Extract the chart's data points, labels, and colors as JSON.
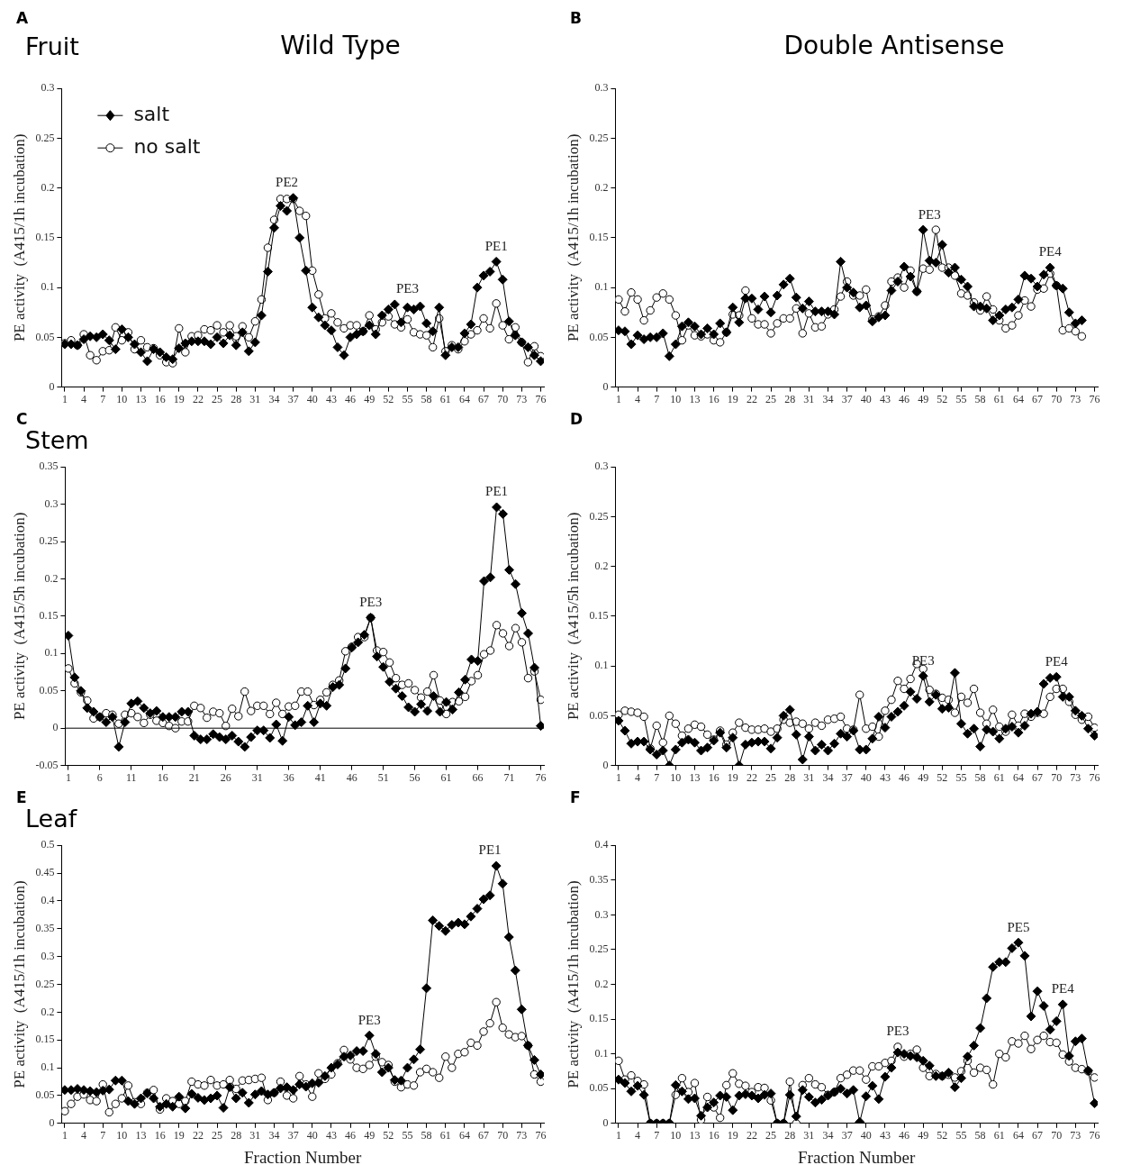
{
  "chart_data": [
    {
      "type": "line",
      "title": "Wild Type",
      "subtitle": "Fruit",
      "ylabel": "PE activity  (A415/1h incubation)",
      "legend": "top left",
      "grid": false,
      "x": [
        1,
        2,
        3,
        4,
        5,
        6,
        7,
        8,
        9,
        10,
        11,
        12,
        13,
        14,
        15,
        16,
        17,
        18,
        19,
        20,
        21,
        22,
        23,
        24,
        25,
        26,
        27,
        28,
        29,
        30,
        31,
        32,
        33,
        34,
        35,
        36,
        37,
        38,
        39,
        40,
        41,
        42,
        43,
        44,
        45,
        46,
        47,
        48,
        49,
        50,
        51,
        52,
        53,
        54,
        55,
        56,
        57,
        58,
        59,
        60,
        61,
        62,
        63,
        64,
        65,
        66,
        67,
        68,
        69,
        70,
        71,
        72,
        73,
        74,
        75,
        76
      ],
      "xlim": [
        0.5,
        76.5
      ],
      "xticks": [
        1,
        4,
        7,
        10,
        13,
        16,
        19,
        22,
        25,
        28,
        31,
        34,
        37,
        40,
        43,
        46,
        49,
        52,
        55,
        58,
        61,
        64,
        67,
        70,
        73,
        76
      ],
      "ylim": [
        0,
        0.3
      ],
      "yticks": [
        0,
        0.05,
        0.1,
        0.15,
        0.2,
        0.25,
        0.3
      ],
      "series": [
        {
          "name": "salt",
          "color": "#000000",
          "marker": "diamond",
          "values": [
            0.043,
            0.043,
            0.042,
            0.048,
            0.051,
            0.05,
            0.053,
            0.047,
            0.038,
            0.058,
            0.05,
            0.043,
            0.035,
            0.026,
            0.038,
            0.035,
            0.03,
            0.028,
            0.039,
            0.044,
            0.046,
            0.046,
            0.046,
            0.043,
            0.05,
            0.044,
            0.052,
            0.042,
            0.055,
            0.036,
            0.045,
            0.072,
            0.116,
            0.16,
            0.182,
            0.177,
            0.19,
            0.15,
            0.117,
            0.08,
            0.07,
            0.062,
            0.057,
            0.04,
            0.032,
            0.05,
            0.053,
            0.056,
            0.062,
            0.053,
            0.072,
            0.078,
            0.083,
            0.065,
            0.08,
            0.078,
            0.081,
            0.064,
            0.056,
            0.08,
            0.032,
            0.04,
            0.04,
            0.054,
            0.063,
            0.1,
            0.112,
            0.116,
            0.126,
            0.108,
            0.066,
            0.052,
            0.045,
            0.04,
            0.032,
            0.026
          ]
        },
        {
          "name": "no salt",
          "color": "#000000",
          "marker": "circle",
          "values": [
            0.044,
            0.047,
            0.042,
            0.053,
            0.032,
            0.027,
            0.036,
            0.037,
            0.06,
            0.047,
            0.055,
            0.038,
            0.047,
            0.04,
            0.039,
            0.032,
            0.025,
            0.024,
            0.059,
            0.035,
            0.051,
            0.052,
            0.058,
            0.057,
            0.062,
            0.055,
            0.062,
            0.051,
            0.061,
            0.05,
            0.066,
            0.088,
            0.14,
            0.168,
            0.189,
            0.189,
            0.189,
            0.177,
            0.172,
            0.117,
            0.093,
            0.069,
            0.074,
            0.065,
            0.059,
            0.062,
            0.062,
            0.056,
            0.072,
            0.058,
            0.065,
            0.071,
            0.063,
            0.06,
            0.068,
            0.055,
            0.053,
            0.052,
            0.04,
            0.069,
            0.036,
            0.042,
            0.038,
            0.046,
            0.053,
            0.057,
            0.069,
            0.059,
            0.084,
            0.062,
            0.048,
            0.06,
            0.045,
            0.025,
            0.041,
            0.031
          ]
        }
      ],
      "annotations": [
        "A",
        {
          "text": "PE2",
          "x": 36,
          "y": 0.19
        },
        {
          "text": "PE3",
          "x": 55,
          "y": 0.083
        },
        {
          "text": "PE1",
          "x": 69,
          "y": 0.126
        }
      ]
    },
    {
      "type": "line",
      "title": "Double Antisense",
      "ylabel": "PE activity  (A415/1h incubation)",
      "grid": false,
      "x": [
        1,
        2,
        3,
        4,
        5,
        6,
        7,
        8,
        9,
        10,
        11,
        12,
        13,
        14,
        15,
        16,
        17,
        18,
        19,
        20,
        21,
        22,
        23,
        24,
        25,
        26,
        27,
        28,
        29,
        30,
        31,
        32,
        33,
        34,
        35,
        36,
        37,
        38,
        39,
        40,
        41,
        42,
        43,
        44,
        45,
        46,
        47,
        48,
        49,
        50,
        51,
        52,
        53,
        54,
        55,
        56,
        57,
        58,
        59,
        60,
        61,
        62,
        63,
        64,
        65,
        66,
        67,
        68,
        69,
        70,
        71,
        72,
        73,
        74
      ],
      "xlim": [
        0.5,
        76.5
      ],
      "xticks": [
        1,
        4,
        7,
        10,
        13,
        16,
        19,
        22,
        25,
        28,
        31,
        34,
        37,
        40,
        43,
        46,
        49,
        52,
        55,
        58,
        61,
        64,
        67,
        70,
        73,
        76
      ],
      "ylim": [
        0,
        0.3
      ],
      "yticks": [
        0,
        0.05,
        0.1,
        0.15,
        0.2,
        0.25,
        0.3
      ],
      "series": [
        {
          "color": "#000000",
          "marker": "diamond",
          "values": [
            0.057,
            0.056,
            0.043,
            0.052,
            0.048,
            0.05,
            0.05,
            0.054,
            0.031,
            0.043,
            0.061,
            0.065,
            0.061,
            0.053,
            0.059,
            0.053,
            0.064,
            0.055,
            0.08,
            0.065,
            0.089,
            0.089,
            0.078,
            0.091,
            0.075,
            0.092,
            0.103,
            0.109,
            0.09,
            0.079,
            0.086,
            0.076,
            0.076,
            0.076,
            0.073,
            0.126,
            0.1,
            0.095,
            0.08,
            0.082,
            0.066,
            0.07,
            0.072,
            0.097,
            0.106,
            0.121,
            0.111,
            0.096,
            0.158,
            0.127,
            0.125,
            0.143,
            0.115,
            0.12,
            0.108,
            0.101,
            0.081,
            0.081,
            0.079,
            0.067,
            0.072,
            0.078,
            0.08,
            0.088,
            0.112,
            0.109,
            0.101,
            0.113,
            0.12,
            0.102,
            0.099,
            0.075,
            0.064,
            0.067
          ]
        },
        {
          "color": "#000000",
          "marker": "circle",
          "values": [
            0.088,
            0.076,
            0.095,
            0.088,
            0.067,
            0.077,
            0.09,
            0.094,
            0.088,
            0.072,
            0.047,
            0.062,
            0.052,
            0.051,
            0.053,
            0.047,
            0.045,
            0.055,
            0.073,
            0.072,
            0.097,
            0.069,
            0.063,
            0.063,
            0.054,
            0.064,
            0.069,
            0.069,
            0.079,
            0.054,
            0.074,
            0.06,
            0.061,
            0.073,
            0.078,
            0.091,
            0.106,
            0.092,
            0.092,
            0.098,
            0.068,
            0.071,
            0.082,
            0.106,
            0.11,
            0.1,
            0.117,
            0.096,
            0.119,
            0.118,
            0.158,
            0.12,
            0.12,
            0.112,
            0.094,
            0.092,
            0.085,
            0.077,
            0.091,
            0.078,
            0.067,
            0.059,
            0.062,
            0.072,
            0.087,
            0.081,
            0.098,
            0.099,
            0.114,
            0.102,
            0.057,
            0.059,
            0.056,
            0.051
          ]
        }
      ],
      "annotations": [
        "B",
        {
          "text": "PE3",
          "x": 50,
          "y": 0.158
        },
        {
          "text": "PE4",
          "x": 69,
          "y": 0.12
        }
      ]
    },
    {
      "type": "line",
      "subtitle": "Stem",
      "ylabel": "PE activity  (A415/5h incubation)",
      "grid": false,
      "x": [
        1,
        2,
        3,
        4,
        5,
        6,
        7,
        8,
        9,
        10,
        11,
        12,
        13,
        14,
        15,
        16,
        17,
        18,
        19,
        20,
        21,
        22,
        23,
        24,
        25,
        26,
        27,
        28,
        29,
        30,
        31,
        32,
        33,
        34,
        35,
        36,
        37,
        38,
        39,
        40,
        41,
        42,
        43,
        44,
        45,
        46,
        47,
        48,
        49,
        50,
        51,
        52,
        53,
        54,
        55,
        56,
        57,
        58,
        59,
        60,
        61,
        62,
        63,
        64,
        65,
        66,
        67,
        68,
        69,
        70,
        71,
        72,
        73,
        74,
        75,
        76
      ],
      "xlim": [
        0.5,
        76.5
      ],
      "xticks": [
        1,
        6,
        11,
        16,
        21,
        26,
        31,
        36,
        41,
        46,
        51,
        56,
        61,
        66,
        71,
        76
      ],
      "ylim": [
        -0.05,
        0.35
      ],
      "yticks": [
        -0.05,
        0,
        0.05,
        0.1,
        0.15,
        0.2,
        0.25,
        0.3,
        0.35
      ],
      "ref_lines": [
        {
          "axis": "y",
          "value": 0,
          "color": "#000000"
        }
      ],
      "series": [
        {
          "color": "#000000",
          "marker": "diamond",
          "values": [
            0.124,
            0.068,
            0.05,
            0.027,
            0.022,
            0.015,
            0.008,
            0.015,
            -0.025,
            0.008,
            0.033,
            0.036,
            0.027,
            0.02,
            0.023,
            0.015,
            0.015,
            0.015,
            0.022,
            0.022,
            -0.01,
            -0.015,
            -0.015,
            -0.008,
            -0.012,
            -0.015,
            -0.01,
            -0.018,
            -0.025,
            -0.012,
            -0.003,
            -0.003,
            -0.013,
            0.005,
            -0.017,
            0.015,
            0.004,
            0.008,
            0.03,
            0.008,
            0.033,
            0.03,
            0.055,
            0.058,
            0.08,
            0.108,
            0.115,
            0.125,
            0.148,
            0.096,
            0.082,
            0.062,
            0.053,
            0.043,
            0.028,
            0.022,
            0.032,
            0.023,
            0.043,
            0.022,
            0.035,
            0.025,
            0.048,
            0.065,
            0.092,
            0.09,
            0.197,
            0.202,
            0.296,
            0.287,
            0.212,
            0.193,
            0.154,
            0.127,
            0.081,
            0.003
          ]
        },
        {
          "color": "#000000",
          "marker": "circle",
          "values": [
            0.08,
            0.06,
            0.048,
            0.037,
            0.013,
            0.015,
            0.02,
            0.018,
            0.006,
            0.018,
            0.02,
            0.015,
            0.007,
            0.018,
            0.01,
            0.007,
            0.003,
            0,
            0.009,
            0.009,
            0.03,
            0.027,
            0.014,
            0.022,
            0.02,
            0.003,
            0.026,
            0.016,
            0.049,
            0.023,
            0.03,
            0.03,
            0.019,
            0.034,
            0.019,
            0.029,
            0.03,
            0.049,
            0.049,
            0.031,
            0.038,
            0.048,
            0.058,
            0.064,
            0.103,
            0.109,
            0.122,
            0.122,
            0.148,
            0.104,
            0.102,
            0.088,
            0.067,
            0.058,
            0.06,
            0.051,
            0.041,
            0.049,
            0.071,
            0.037,
            0.019,
            0.035,
            0.036,
            0.042,
            0.063,
            0.071,
            0.099,
            0.104,
            0.138,
            0.127,
            0.11,
            0.134,
            0.115,
            0.067,
            0.076,
            0.038
          ]
        }
      ],
      "annotations": [
        "C",
        {
          "text": "PE3",
          "x": 49,
          "y": 0.148
        },
        {
          "text": "PE1",
          "x": 69,
          "y": 0.296
        }
      ]
    },
    {
      "type": "line",
      "ylabel": "PE activity  (A415/5h incubation)",
      "grid": false,
      "x": [
        1,
        2,
        3,
        4,
        5,
        6,
        7,
        8,
        9,
        10,
        11,
        12,
        13,
        14,
        15,
        16,
        17,
        18,
        19,
        20,
        21,
        22,
        23,
        24,
        25,
        26,
        27,
        28,
        29,
        30,
        31,
        32,
        33,
        34,
        35,
        36,
        37,
        38,
        39,
        40,
        41,
        42,
        43,
        44,
        45,
        46,
        47,
        48,
        49,
        50,
        51,
        52,
        53,
        54,
        55,
        56,
        57,
        58,
        59,
        60,
        61,
        62,
        63,
        64,
        65,
        66,
        67,
        68,
        69,
        70,
        71,
        72,
        73,
        74,
        75,
        76
      ],
      "xlim": [
        0.5,
        76.5
      ],
      "xticks": [
        1,
        4,
        7,
        10,
        13,
        16,
        19,
        22,
        25,
        28,
        31,
        34,
        37,
        40,
        43,
        46,
        49,
        52,
        55,
        58,
        61,
        64,
        67,
        70,
        73,
        76
      ],
      "ylim": [
        0,
        0.3
      ],
      "yticks": [
        0,
        0.05,
        0.1,
        0.15,
        0.2,
        0.25,
        0.3
      ],
      "series": [
        {
          "color": "#000000",
          "marker": "diamond",
          "values": [
            0.045,
            0.035,
            0.022,
            0.024,
            0.024,
            0.016,
            0.011,
            0.015,
            0,
            0.016,
            0.023,
            0.026,
            0.023,
            0.015,
            0.018,
            0.025,
            0.033,
            0.018,
            0.028,
            0,
            0.021,
            0.023,
            0.024,
            0.024,
            0.017,
            0.028,
            0.05,
            0.056,
            0.031,
            0.006,
            0.029,
            0.015,
            0.021,
            0.015,
            0.022,
            0.032,
            0.029,
            0.035,
            0.016,
            0.016,
            0.027,
            0.049,
            0.038,
            0.049,
            0.054,
            0.06,
            0.074,
            0.067,
            0.09,
            0.064,
            0.071,
            0.057,
            0.058,
            0.093,
            0.042,
            0.032,
            0.037,
            0.019,
            0.036,
            0.034,
            0.027,
            0.037,
            0.039,
            0.033,
            0.04,
            0.052,
            0.054,
            0.082,
            0.088,
            0.089,
            0.069,
            0.069,
            0.055,
            0.05,
            0.037,
            0.03
          ]
        },
        {
          "color": "#000000",
          "marker": "circle",
          "values": [
            0.051,
            0.055,
            0.054,
            0.053,
            0.049,
            0.017,
            0.04,
            0.023,
            0.05,
            0.042,
            0.03,
            0.037,
            0.041,
            0.039,
            0.031,
            0.026,
            0.035,
            0.021,
            0.033,
            0.043,
            0.038,
            0.036,
            0.036,
            0.037,
            0.034,
            0.037,
            0.046,
            0.043,
            0.044,
            0.042,
            0.037,
            0.043,
            0.04,
            0.046,
            0.047,
            0.049,
            0.037,
            0.036,
            0.071,
            0.037,
            0.039,
            0.029,
            0.055,
            0.066,
            0.085,
            0.077,
            0.087,
            0.102,
            0.097,
            0.076,
            0.072,
            0.068,
            0.066,
            0.053,
            0.069,
            0.063,
            0.077,
            0.053,
            0.042,
            0.056,
            0.039,
            0.034,
            0.051,
            0.04,
            0.052,
            0.049,
            0.053,
            0.052,
            0.069,
            0.077,
            0.077,
            0.064,
            0.051,
            0.046,
            0.049,
            0.038
          ]
        }
      ],
      "annotations": [
        "D",
        {
          "text": "PE3",
          "x": 49,
          "y": 0.09
        },
        {
          "text": "PE4",
          "x": 70,
          "y": 0.089
        }
      ]
    },
    {
      "type": "line",
      "subtitle": "Leaf",
      "xlabel": "Fraction Number",
      "ylabel": "PE activity  (A415/1h incubation)",
      "grid": false,
      "x": [
        1,
        2,
        3,
        4,
        5,
        6,
        7,
        8,
        9,
        10,
        11,
        12,
        13,
        14,
        15,
        16,
        17,
        18,
        19,
        20,
        21,
        22,
        23,
        24,
        25,
        26,
        27,
        28,
        29,
        30,
        31,
        32,
        33,
        34,
        35,
        36,
        37,
        38,
        39,
        40,
        41,
        42,
        43,
        44,
        45,
        46,
        47,
        48,
        49,
        50,
        51,
        52,
        53,
        54,
        55,
        56,
        57,
        58,
        59,
        60,
        61,
        62,
        63,
        64,
        65,
        66,
        67,
        68,
        69,
        70,
        71,
        72,
        73,
        74,
        75,
        76
      ],
      "xlim": [
        0.5,
        76.5
      ],
      "xticks": [
        1,
        4,
        7,
        10,
        13,
        16,
        19,
        22,
        25,
        28,
        31,
        34,
        37,
        40,
        43,
        46,
        49,
        52,
        55,
        58,
        61,
        64,
        67,
        70,
        73,
        76
      ],
      "ylim": [
        0,
        0.5
      ],
      "yticks": [
        0,
        0.05,
        0.1,
        0.15,
        0.2,
        0.25,
        0.3,
        0.35,
        0.4,
        0.45,
        0.5
      ],
      "series": [
        {
          "color": "#000000",
          "marker": "diamond",
          "values": [
            0.06,
            0.06,
            0.062,
            0.06,
            0.058,
            0.056,
            0.059,
            0.061,
            0.077,
            0.077,
            0.04,
            0.035,
            0.045,
            0.054,
            0.045,
            0.03,
            0.035,
            0.03,
            0.048,
            0.027,
            0.053,
            0.046,
            0.042,
            0.045,
            0.05,
            0.028,
            0.065,
            0.045,
            0.055,
            0.037,
            0.052,
            0.058,
            0.052,
            0.055,
            0.063,
            0.065,
            0.06,
            0.07,
            0.066,
            0.072,
            0.073,
            0.085,
            0.1,
            0.106,
            0.12,
            0.122,
            0.13,
            0.13,
            0.158,
            0.125,
            0.092,
            0.1,
            0.078,
            0.077,
            0.1,
            0.115,
            0.133,
            0.243,
            0.365,
            0.355,
            0.346,
            0.357,
            0.361,
            0.358,
            0.372,
            0.386,
            0.403,
            0.41,
            0.463,
            0.431,
            0.335,
            0.275,
            0.205,
            0.14,
            0.114,
            0.088
          ]
        },
        {
          "color": "#000000",
          "marker": "circle",
          "values": [
            0.022,
            0.035,
            0.048,
            0.052,
            0.042,
            0.04,
            0.07,
            0.02,
            0.035,
            0.045,
            0.068,
            0.038,
            0.035,
            0.055,
            0.06,
            0.025,
            0.045,
            0.04,
            0.035,
            0.04,
            0.075,
            0.07,
            0.068,
            0.078,
            0.068,
            0.07,
            0.078,
            0.062,
            0.077,
            0.078,
            0.08,
            0.082,
            0.042,
            0.055,
            0.075,
            0.05,
            0.045,
            0.085,
            0.07,
            0.048,
            0.09,
            0.08,
            0.088,
            0.108,
            0.132,
            0.115,
            0.1,
            0.098,
            0.105,
            0.12,
            0.11,
            0.105,
            0.075,
            0.065,
            0.07,
            0.068,
            0.092,
            0.098,
            0.092,
            0.082,
            0.12,
            0.1,
            0.125,
            0.128,
            0.145,
            0.14,
            0.165,
            0.18,
            0.218,
            0.172,
            0.16,
            0.155,
            0.157,
            0.14,
            0.088,
            0.075
          ]
        }
      ],
      "annotations": [
        "E",
        {
          "text": "PE3",
          "x": 49,
          "y": 0.158
        },
        {
          "text": "PE1",
          "x": 68,
          "y": 0.463
        }
      ]
    },
    {
      "type": "line",
      "xlabel": "Fraction Number",
      "ylabel": "PE activity  (A415/1h incubation)",
      "grid": false,
      "x": [
        1,
        2,
        3,
        4,
        5,
        6,
        7,
        8,
        9,
        10,
        11,
        12,
        13,
        14,
        15,
        16,
        17,
        18,
        19,
        20,
        21,
        22,
        23,
        24,
        25,
        26,
        27,
        28,
        29,
        30,
        31,
        32,
        33,
        34,
        35,
        36,
        37,
        38,
        39,
        40,
        41,
        42,
        43,
        44,
        45,
        46,
        47,
        48,
        49,
        50,
        51,
        52,
        53,
        54,
        55,
        56,
        57,
        58,
        59,
        60,
        61,
        62,
        63,
        64,
        65,
        66,
        67,
        68,
        69,
        70,
        71,
        72,
        73,
        74,
        75,
        76
      ],
      "xlim": [
        0.5,
        76.5
      ],
      "xticks": [
        1,
        4,
        7,
        10,
        13,
        16,
        19,
        22,
        25,
        28,
        31,
        34,
        37,
        40,
        43,
        46,
        49,
        52,
        55,
        58,
        61,
        64,
        67,
        70,
        73,
        76
      ],
      "ylim": [
        0,
        0.4
      ],
      "yticks": [
        0,
        0.05,
        0.1,
        0.15,
        0.2,
        0.25,
        0.3,
        0.35,
        0.4
      ],
      "series": [
        {
          "color": "#000000",
          "marker": "diamond",
          "values": [
            0.063,
            0.058,
            0.046,
            0.054,
            0.041,
            0,
            0,
            0,
            0,
            0.055,
            0.046,
            0.035,
            0.036,
            0.011,
            0.023,
            0.03,
            0.04,
            0.038,
            0.019,
            0.04,
            0.042,
            0.04,
            0.036,
            0.041,
            0.043,
            0,
            0,
            0.041,
            0.01,
            0.048,
            0.038,
            0.03,
            0.034,
            0.04,
            0.045,
            0.05,
            0.043,
            0.048,
            0.002,
            0.039,
            0.054,
            0.035,
            0.067,
            0.08,
            0.102,
            0.1,
            0.097,
            0.095,
            0.09,
            0.083,
            0.068,
            0.068,
            0.073,
            0.052,
            0.065,
            0.096,
            0.112,
            0.137,
            0.18,
            0.225,
            0.232,
            0.232,
            0.252,
            0.26,
            0.241,
            0.154,
            0.19,
            0.169,
            0.135,
            0.147,
            0.171,
            0.097,
            0.118,
            0.122,
            0.076,
            0.029
          ]
        },
        {
          "color": "#000000",
          "marker": "circle",
          "values": [
            0.09,
            0.063,
            0.069,
            0.061,
            0.056,
            0,
            0,
            0,
            0,
            0.041,
            0.065,
            0.045,
            0.058,
            0.005,
            0.038,
            0.023,
            0.008,
            0.055,
            0.072,
            0.057,
            0.054,
            0.045,
            0.052,
            0.051,
            0.033,
            0,
            0,
            0.06,
            0,
            0.055,
            0.065,
            0.056,
            0.052,
            0.041,
            0.045,
            0.065,
            0.07,
            0.076,
            0.076,
            0.063,
            0.082,
            0.082,
            0.087,
            0.09,
            0.11,
            0.096,
            0.1,
            0.106,
            0.08,
            0.068,
            0.071,
            0.068,
            0.07,
            0.066,
            0.075,
            0.09,
            0.073,
            0.08,
            0.077,
            0.056,
            0.1,
            0.095,
            0.118,
            0.115,
            0.126,
            0.107,
            0.12,
            0.126,
            0.117,
            0.116,
            0.099,
            0.089,
            0.08,
            0.078,
            0.075,
            0.066
          ]
        }
      ],
      "annotations": [
        "F",
        {
          "text": "PE3",
          "x": 45,
          "y": 0.11
        },
        {
          "text": "PE5",
          "x": 64,
          "y": 0.26
        },
        {
          "text": "PE4",
          "x": 71,
          "y": 0.171
        }
      ]
    }
  ]
}
